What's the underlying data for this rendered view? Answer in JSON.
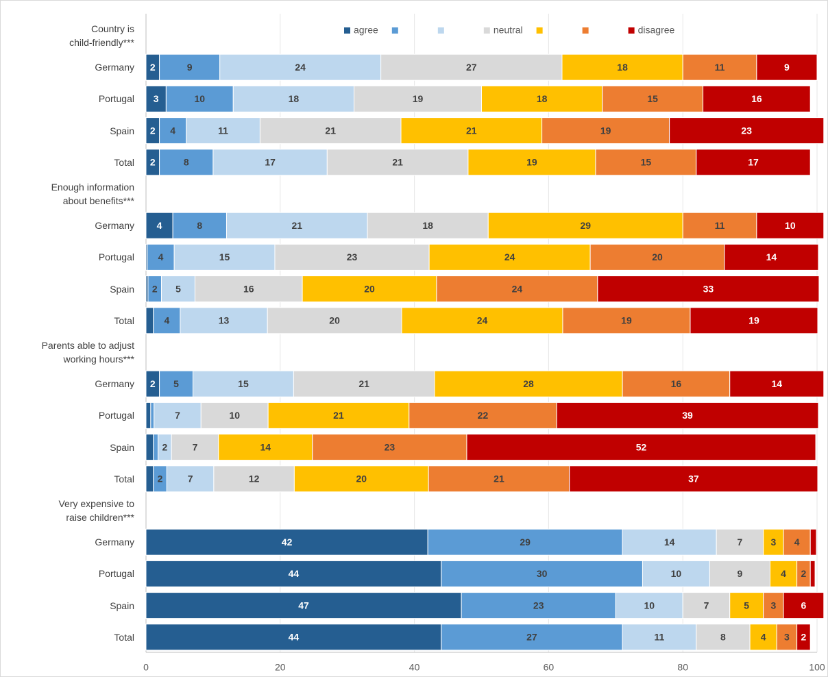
{
  "chart_data": {
    "type": "stacked-bar-horizontal",
    "categories": [
      "Country is\nchild-friendly***",
      "Germany",
      "Portugal",
      "Spain",
      "Total",
      "Enough information\nabout benefits***",
      "Germany",
      "Portugal",
      "Spain",
      "Total",
      "Parents able to adjust\nworking hours***",
      "Germany",
      "Portugal",
      "Spain",
      "Total",
      "Very expensive to\nraise children***",
      "Germany",
      "Portugal",
      "Spain",
      "Total"
    ],
    "series": [
      {
        "name": "agree",
        "color": "#255e91",
        "values": [
          null,
          2,
          3,
          2,
          2,
          null,
          4,
          0.2,
          0.3,
          1.1,
          null,
          2,
          0.7,
          1.1,
          1.1,
          null,
          42,
          44,
          47,
          44
        ]
      },
      {
        "name": null,
        "color": "#5b9bd5",
        "values": [
          null,
          9,
          10,
          4,
          8,
          null,
          8,
          4,
          2,
          4,
          null,
          5,
          0.5,
          0.7,
          2,
          null,
          29,
          30,
          23,
          27
        ]
      },
      {
        "name": null,
        "color": "#bdd7ee",
        "values": [
          null,
          24,
          18,
          11,
          17,
          null,
          21,
          15,
          5,
          13,
          null,
          15,
          7,
          2,
          7,
          null,
          14,
          10,
          10,
          11
        ]
      },
      {
        "name": "neutral",
        "color": "#d9d9d9",
        "values": [
          null,
          27,
          19,
          21,
          21,
          null,
          18,
          23,
          16,
          20,
          null,
          21,
          10,
          7,
          12,
          null,
          7,
          9,
          7,
          8
        ]
      },
      {
        "name": null,
        "color": "#ffc000",
        "values": [
          null,
          18,
          18,
          21,
          19,
          null,
          29,
          24,
          20,
          24,
          null,
          28,
          21,
          14,
          20,
          null,
          3,
          4,
          5,
          4
        ]
      },
      {
        "name": null,
        "color": "#ed7d31",
        "values": [
          null,
          11,
          15,
          19,
          15,
          null,
          11,
          20,
          24,
          19,
          null,
          16,
          22,
          23,
          21,
          null,
          4,
          2,
          3,
          3
        ]
      },
      {
        "name": "disagree",
        "color": "#c00000",
        "values": [
          null,
          9,
          16,
          23,
          17,
          null,
          10,
          14,
          33,
          19,
          null,
          14,
          39,
          52,
          37,
          null,
          0.9,
          0.7,
          6,
          2
        ]
      }
    ],
    "xlim": [
      0,
      100
    ],
    "xticks": [
      0,
      20,
      40,
      60,
      80,
      100
    ],
    "grid": true
  }
}
